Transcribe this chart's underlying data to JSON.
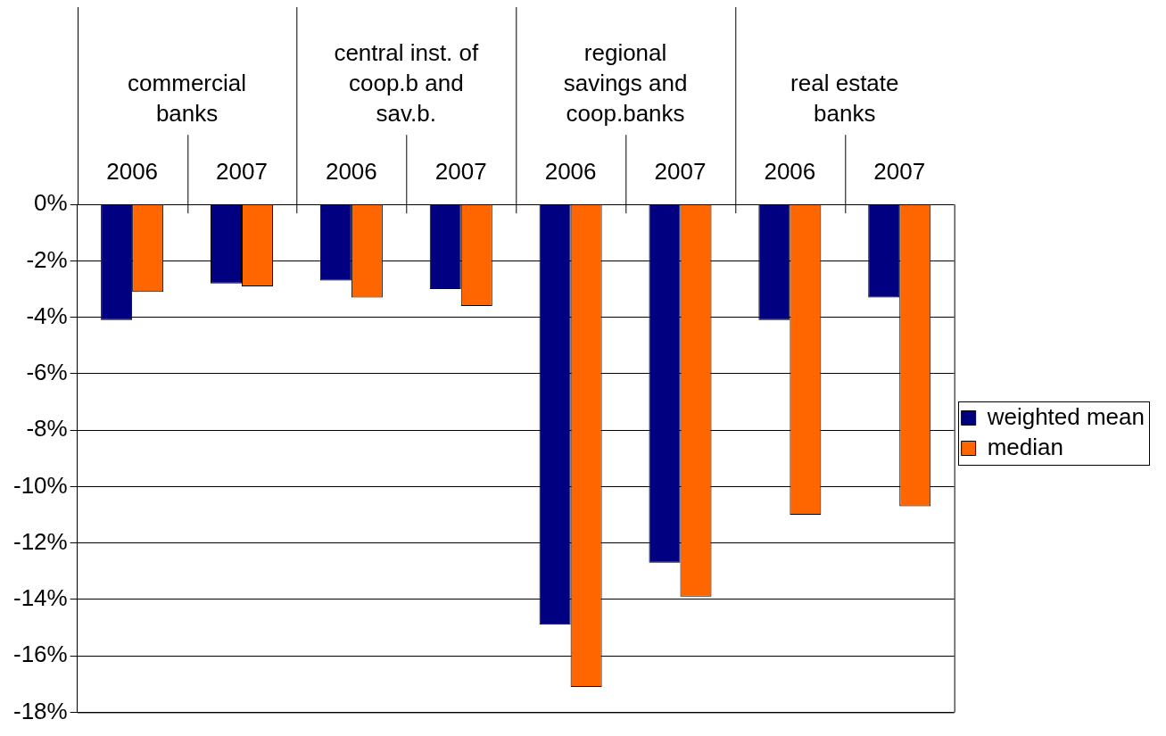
{
  "chart_data": {
    "type": "bar",
    "categories": [
      "2006",
      "2007",
      "2006",
      "2007",
      "2006",
      "2007",
      "2006",
      "2007"
    ],
    "annotations": [
      "commercial\nbanks",
      "central inst. of\ncoop.b and\nsav.b.",
      "regional\nsavings and\ncoop.banks",
      "real estate\nbanks"
    ],
    "series": [
      {
        "name": "weighted mean",
        "color": "#000080",
        "values": [
          -4.1,
          -2.8,
          -2.7,
          -3.0,
          -14.9,
          -12.7,
          -4.1,
          -3.3
        ]
      },
      {
        "name": "median",
        "color": "#ff6600",
        "values": [
          -3.1,
          -2.9,
          -3.3,
          -3.6,
          -17.1,
          -13.9,
          -11.0,
          -10.7
        ]
      }
    ],
    "ylim": [
      -18,
      0
    ],
    "yticks": [
      {
        "value": 0,
        "label": "0%"
      },
      {
        "value": -2,
        "label": "-2%"
      },
      {
        "value": -4,
        "label": "-4%"
      },
      {
        "value": -6,
        "label": "-6%"
      },
      {
        "value": -8,
        "label": "-8%"
      },
      {
        "value": -10,
        "label": "-10%"
      },
      {
        "value": -12,
        "label": "-12%"
      },
      {
        "value": -14,
        "label": "-14%"
      },
      {
        "value": -16,
        "label": "-16%"
      },
      {
        "value": -18,
        "label": "-18%"
      }
    ],
    "grid": "y",
    "legend": "right"
  }
}
